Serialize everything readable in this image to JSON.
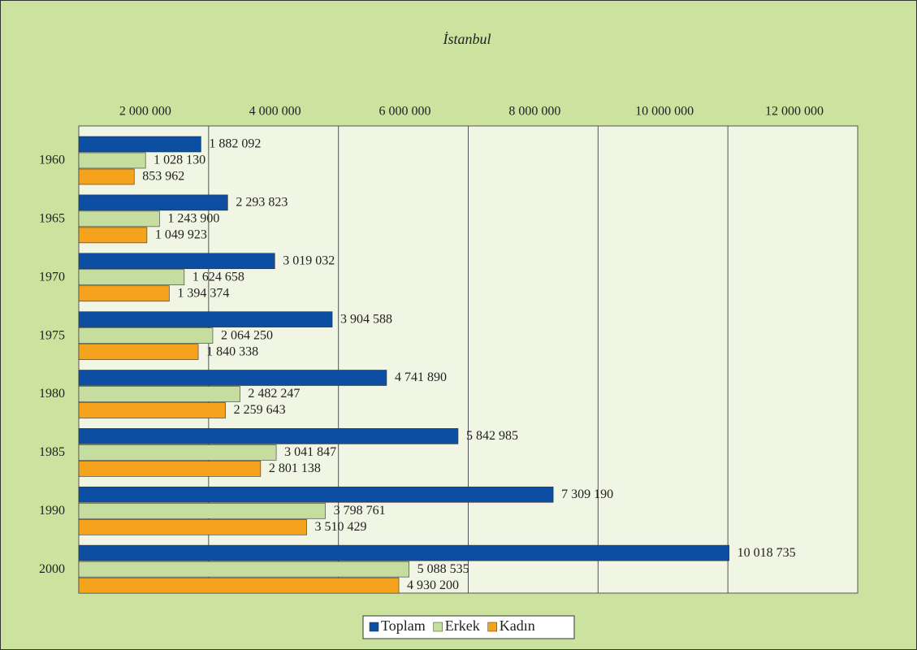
{
  "chart_data": {
    "type": "bar",
    "orientation": "horizontal",
    "title": "İstanbul",
    "categories": [
      "1960",
      "1965",
      "1970",
      "1975",
      "1980",
      "1985",
      "1990",
      "2000"
    ],
    "series": [
      {
        "name": "Toplam",
        "color": "#0b4ea2",
        "values": [
          1882092,
          2293823,
          3019032,
          3904588,
          4741890,
          5842985,
          7309190,
          10018735
        ],
        "value_labels": [
          "1 882 092",
          "2 293 823",
          "3 019 032",
          "3 904 588",
          "4 741 890",
          "5 842 985",
          "7 309 190",
          "10 018 735"
        ]
      },
      {
        "name": "Erkek",
        "color": "#c5dea0",
        "values": [
          1028130,
          1243900,
          1624658,
          2064250,
          2482247,
          3041847,
          3798761,
          5088535
        ],
        "value_labels": [
          "1 028 130",
          "1 243 900",
          "1 624 658",
          "2 064 250",
          "2 482 247",
          "3 041 847",
          "3 798 761",
          "5 088 535"
        ]
      },
      {
        "name": "Kadın",
        "color": "#f5a31d",
        "values": [
          853962,
          1049923,
          1394374,
          1840338,
          2259643,
          2801138,
          3510429,
          4930200
        ],
        "value_labels": [
          "853 962",
          "1 049 923",
          "1 394 374",
          "1 840 338",
          "2 259 643",
          "2 801 138",
          "3 510 429",
          "4 930 200"
        ]
      }
    ],
    "xlim": [
      0,
      12000000
    ],
    "xticks": [
      {
        "value": 2000000,
        "label": "2 000 000"
      },
      {
        "value": 4000000,
        "label": "4 000 000"
      },
      {
        "value": 6000000,
        "label": "6 000 000"
      },
      {
        "value": 8000000,
        "label": "8 000 000"
      },
      {
        "value": 10000000,
        "label": "10 000 000"
      },
      {
        "value": 12000000,
        "label": "12 000 000"
      }
    ],
    "grid": true,
    "legend": "bottom"
  }
}
